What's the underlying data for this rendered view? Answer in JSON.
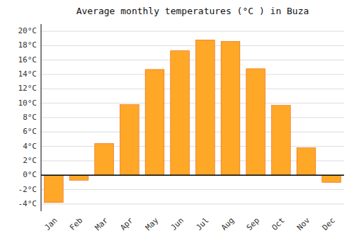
{
  "chart_data": {
    "type": "bar",
    "title": "Average monthly temperatures (°C ) in Buza",
    "categories": [
      "Jan",
      "Feb",
      "Mar",
      "Apr",
      "May",
      "Jun",
      "Jul",
      "Aug",
      "Sep",
      "Oct",
      "Nov",
      "Dec"
    ],
    "values": [
      -3.8,
      -0.7,
      4.4,
      9.8,
      14.7,
      17.3,
      18.8,
      18.6,
      14.8,
      9.7,
      3.8,
      -1.0
    ],
    "color": "#FFA726",
    "ylim": [
      -5.0,
      21.0
    ],
    "yticks": [
      {
        "value": -4,
        "label": "-4°C"
      },
      {
        "value": -2,
        "label": "-2°C"
      },
      {
        "value": 0,
        "label": "0°C"
      },
      {
        "value": 2,
        "label": "2°C"
      },
      {
        "value": 4,
        "label": "4°C"
      },
      {
        "value": 6,
        "label": "6°C"
      },
      {
        "value": 8,
        "label": "8°C"
      },
      {
        "value": 10,
        "label": "10°C"
      },
      {
        "value": 12,
        "label": "12°C"
      },
      {
        "value": 14,
        "label": "14°C"
      },
      {
        "value": 16,
        "label": "16°C"
      },
      {
        "value": 18,
        "label": "18°C"
      },
      {
        "value": 20,
        "label": "20°C"
      }
    ],
    "grid": true
  }
}
